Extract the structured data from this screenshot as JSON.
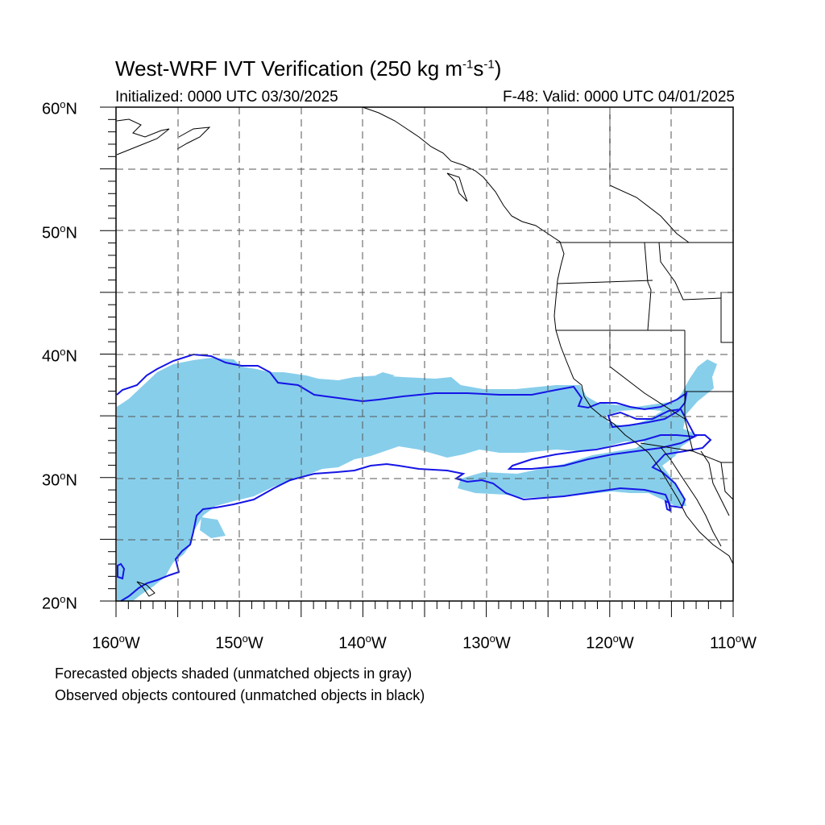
{
  "title": {
    "prefix": "West-WRF IVT Verification (250 kg m",
    "exp1": "-1",
    "mid": "s",
    "exp2": "-1",
    "suffix": ")"
  },
  "initialized": "Initialized: 0000 UTC 03/30/2025",
  "valid": "F-48: Valid: 0000 UTC 04/01/2025",
  "lat_labels": [
    {
      "value": 60,
      "num": "60",
      "deg": "o",
      "hem": "N"
    },
    {
      "value": 50,
      "num": "50",
      "deg": "o",
      "hem": "N"
    },
    {
      "value": 40,
      "num": "40",
      "deg": "o",
      "hem": "N"
    },
    {
      "value": 30,
      "num": "30",
      "deg": "o",
      "hem": "N"
    },
    {
      "value": 20,
      "num": "20",
      "deg": "o",
      "hem": "N"
    }
  ],
  "lon_labels": [
    {
      "value": -160,
      "num": "160",
      "deg": "o",
      "hem": "W"
    },
    {
      "value": -150,
      "num": "150",
      "deg": "o",
      "hem": "W"
    },
    {
      "value": -140,
      "num": "140",
      "deg": "o",
      "hem": "W"
    },
    {
      "value": -130,
      "num": "130",
      "deg": "o",
      "hem": "W"
    },
    {
      "value": -120,
      "num": "120",
      "deg": "o",
      "hem": "W"
    },
    {
      "value": -110,
      "num": "110",
      "deg": "o",
      "hem": "W"
    }
  ],
  "notes": {
    "forecast": "Forecasted objects shaded (unmatched objects in gray)",
    "observed": "Observed objects contoured (unmatched objects in black)"
  },
  "colors": {
    "forecast_fill": "#87ceeb",
    "observed_contour": "#1515e6",
    "coastline": "#000000",
    "grid": "#555555"
  },
  "map_extent": {
    "lon_min": -160,
    "lon_max": -110,
    "lat_min": 20,
    "lat_max": 60
  }
}
